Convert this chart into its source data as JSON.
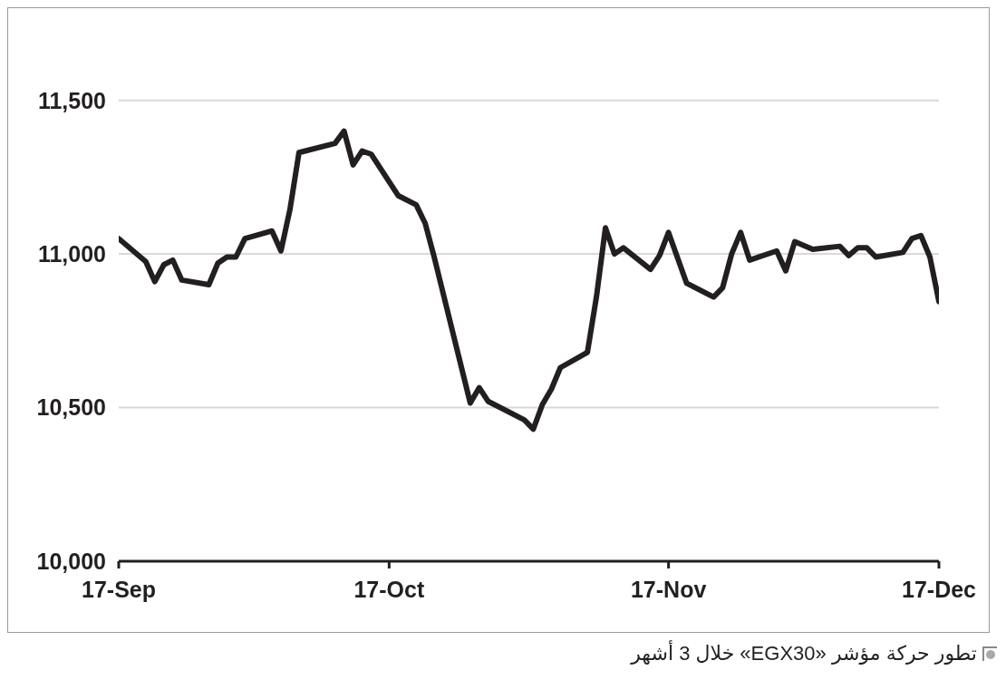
{
  "chart_data": {
    "type": "line",
    "x": [
      "--09-17",
      "--09-20",
      "--09-21",
      "--09-22",
      "--09-23",
      "--09-24",
      "--09-27",
      "--09-28",
      "--09-29",
      "--09-30",
      "--10-01",
      "--10-04",
      "--10-05",
      "--10-06",
      "--10-07",
      "--10-11",
      "--10-12",
      "--10-13",
      "--10-14",
      "--10-15",
      "--10-18",
      "--10-20",
      "--10-21",
      "--10-22",
      "--10-26",
      "--10-27",
      "--10-28",
      "--11-01",
      "--11-02",
      "--11-03",
      "--11-04",
      "--11-05",
      "--11-08",
      "--11-09",
      "--11-10",
      "--11-11",
      "--11-12",
      "--11-15",
      "--11-16",
      "--11-17",
      "--11-19",
      "--11-22",
      "--11-23",
      "--11-24",
      "--11-25",
      "--11-26",
      "--11-29",
      "--11-30",
      "--12-01",
      "--12-03",
      "--12-06",
      "--12-07",
      "--12-08",
      "--12-09",
      "--12-10",
      "--12-13",
      "--12-14",
      "--12-15",
      "--12-16",
      "--12-17"
    ],
    "series": [
      {
        "color": "#231f20",
        "values": [
          11050,
          10975,
          10910,
          10965,
          10980,
          10915,
          10900,
          10970,
          10990,
          10990,
          11050,
          11075,
          11010,
          11145,
          11330,
          11360,
          11400,
          11290,
          11335,
          11325,
          11190,
          11160,
          11100,
          10990,
          10515,
          10565,
          10520,
          10460,
          10430,
          10510,
          10560,
          10630,
          10680,
          10860,
          11085,
          11000,
          11020,
          10950,
          10995,
          11070,
          10905,
          10860,
          10890,
          11000,
          11070,
          10980,
          11010,
          10945,
          11040,
          11015,
          11025,
          10995,
          11020,
          11020,
          10990,
          11005,
          11050,
          11060,
          10990,
          10845
        ]
      }
    ],
    "xlim": [
      "--09-17",
      "--12-17"
    ],
    "xticks": [
      {
        "value": "--09-17",
        "label": "17-Sep"
      },
      {
        "value": "--10-17",
        "label": "17-Oct"
      },
      {
        "value": "--11-17",
        "label": "17-Nov"
      },
      {
        "value": "--12-17",
        "label": "17-Dec"
      }
    ],
    "ylim": [
      10000,
      11800
    ],
    "yticks": [
      {
        "value": 10000,
        "label": "10,000"
      },
      {
        "value": 10500,
        "label": "10,500"
      },
      {
        "value": 11000,
        "label": "11,000"
      },
      {
        "value": 11500,
        "label": "11,500"
      }
    ],
    "grid": "y",
    "annotations": [
      "تطور حركة مؤشر «EGX30» خلال 3 أشهر"
    ]
  }
}
